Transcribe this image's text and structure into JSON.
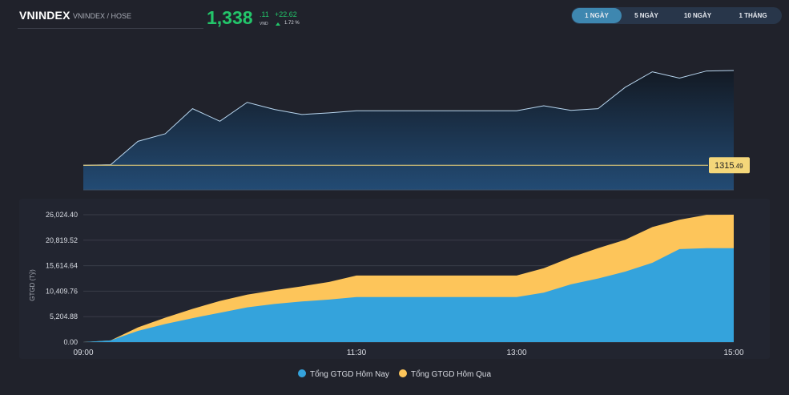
{
  "header": {
    "title": "VNINDEX",
    "subtitle": "VNINDEX / HOSE",
    "price_int": "1,338",
    "price_dec": ".11",
    "price_unit": "VND",
    "change": "+22.62",
    "change_pct": "1.72 %"
  },
  "range_tabs": [
    "1 NGÀY",
    "5 NGÀY",
    "10 NGÀY",
    "1 THÁNG"
  ],
  "active_tab": 0,
  "colors": {
    "background": "#20222b",
    "accent_green": "#23c56a",
    "index_line": "#b9d7f0",
    "reference_line": "#f4d77a",
    "today_fill": "#34a3dc",
    "yesterday_fill": "#fdc55a",
    "tab_active": "#3e87b0"
  },
  "reference_label": {
    "int": "1315",
    "dec": ".49"
  },
  "chart_data": [
    {
      "type": "line",
      "x_label": "",
      "y_label": "",
      "x": [
        "09:00",
        "09:15",
        "09:30",
        "09:45",
        "10:00",
        "10:15",
        "10:30",
        "10:45",
        "11:00",
        "11:15",
        "11:30",
        "13:00",
        "13:15",
        "13:30",
        "13:45",
        "14:00",
        "14:15",
        "14:30",
        "14:45",
        "15:00"
      ],
      "series": [
        {
          "values": [
            1315.49,
            1315.6,
            1321.2,
            1323.0,
            1329.0,
            1326.0,
            1330.5,
            1328.8,
            1327.6,
            1328.0,
            1328.5,
            1328.5,
            1329.7,
            1328.6,
            1329.0,
            1334.1,
            1337.8,
            1336.3,
            1338.0,
            1338.11
          ]
        }
      ],
      "reference": 1315.49,
      "grid": false
    },
    {
      "type": "area",
      "x": [
        "09:00",
        "09:15",
        "09:30",
        "09:45",
        "10:00",
        "10:15",
        "10:30",
        "10:45",
        "11:00",
        "11:15",
        "11:30",
        "13:00",
        "13:15",
        "13:30",
        "13:45",
        "14:00",
        "14:15",
        "14:30",
        "14:45",
        "15:00"
      ],
      "series": [
        {
          "name": "Tổng GTGD Hôm Nay",
          "values": [
            0,
            350,
            2300,
            3700,
            4900,
            6000,
            7100,
            7800,
            8300,
            8700,
            9200,
            9200,
            10100,
            11800,
            13000,
            14400,
            16200,
            19000,
            19200,
            19200
          ]
        },
        {
          "name": "Tổng GTGD Hôm Qua",
          "values": [
            0,
            350,
            3000,
            5000,
            6800,
            8400,
            9700,
            10600,
            11400,
            12300,
            13600,
            13600,
            15100,
            17300,
            19200,
            20900,
            23500,
            25000,
            26000,
            26024.4
          ]
        }
      ],
      "y_label": "GTGD (Tỷ)",
      "y_ticks": [
        "0.00",
        "5,204.88",
        "10,409.76",
        "15,614.64",
        "20,819.52",
        "26,024.40"
      ],
      "x_ticks": [
        "09:00",
        "11:30",
        "13:00",
        "15:00"
      ],
      "ylim": [
        0,
        26024.4
      ],
      "grid": true,
      "legend": "bottom-center"
    }
  ]
}
